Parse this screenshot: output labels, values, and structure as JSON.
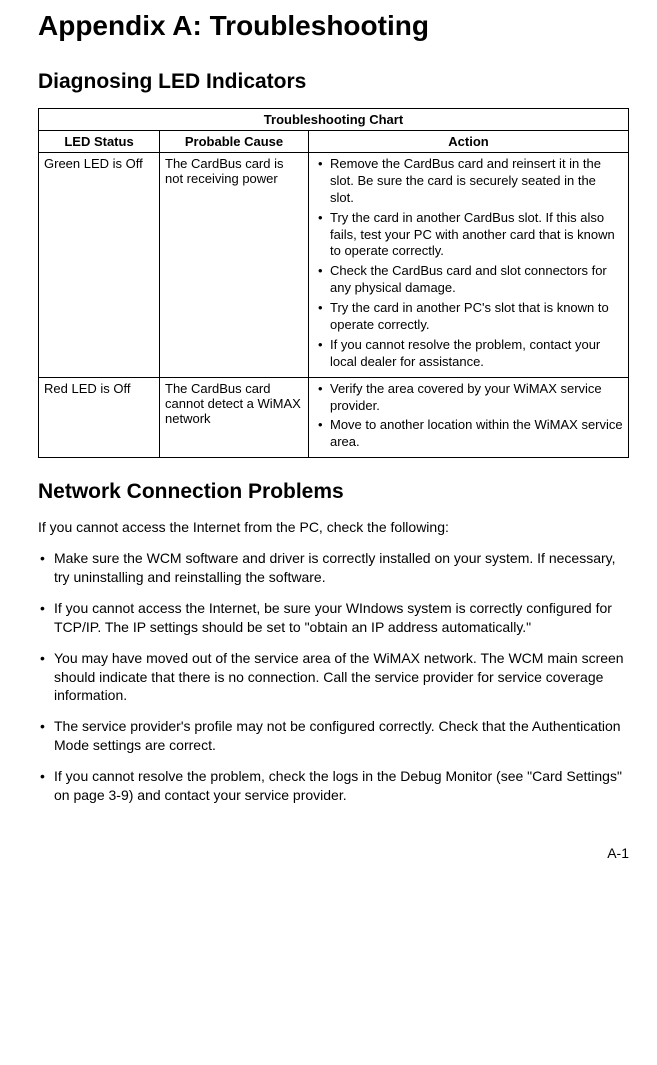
{
  "title": "Appendix A: Troubleshooting",
  "section1": {
    "heading": "Diagnosing LED Indicators",
    "table_title": "Troubleshooting Chart",
    "columns": [
      "LED Status",
      "Probable Cause",
      "Action"
    ],
    "rows": [
      {
        "led": "Green LED is Off",
        "cause": "The CardBus card is not receiving power",
        "actions": [
          "Remove the CardBus card and reinsert it in the slot. Be sure the card is securely seated in the slot.",
          "Try the card in another CardBus slot. If this also fails, test your PC with another card that is known to operate correctly.",
          "Check the CardBus card and slot connectors for any physical damage.",
          "Try the card in another PC's slot that is known to operate correctly.",
          "If you cannot resolve the problem, contact your local dealer for assistance."
        ]
      },
      {
        "led": "Red LED is Off",
        "cause": "The CardBus card cannot detect a WiMAX network",
        "actions": [
          "Verify the area covered by your WiMAX service provider.",
          "Move to another location within the WiMAX service area."
        ]
      }
    ]
  },
  "section2": {
    "heading": "Network Connection Problems",
    "intro": "If you cannot access the Internet from the PC, check the following:",
    "items": [
      "Make sure the WCM software and driver is correctly installed on your system. If necessary, try uninstalling and reinstalling the software.",
      "If you cannot access the Internet, be sure your WIndows system is correctly configured for TCP/IP. The IP settings should be set to \"obtain an IP address automatically.\"",
      "You may have moved out of the service area of the WiMAX network. The WCM main screen should indicate that there is no connection. Call the service provider for service coverage information.",
      "The service provider's profile may not be configured correctly. Check that the Authentication Mode settings are correct.",
      "If you cannot resolve the problem, check the logs in the Debug Monitor (see \"Card Settings\" on page 3-9) and contact your service provider."
    ]
  },
  "page_number": "A-1"
}
